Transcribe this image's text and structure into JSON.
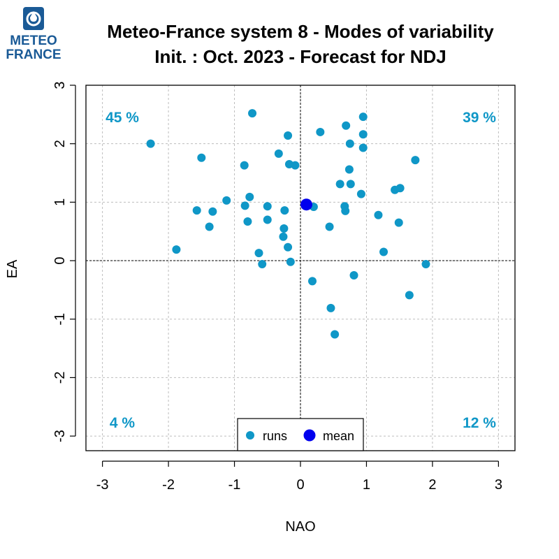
{
  "logo": {
    "line1": "METEO",
    "line2": "FRANCE",
    "color": "#1a5a96"
  },
  "chart_data": {
    "type": "scatter",
    "title": "Meteo-France system 8 - Modes of variability",
    "subtitle": "Init. : Oct. 2023 - Forecast for NDJ",
    "xlabel": "NAO",
    "ylabel": "EA",
    "xlim": [
      -3.25,
      3.25
    ],
    "ylim": [
      -3.25,
      3.0
    ],
    "xticks": [
      -3,
      -2,
      -1,
      0,
      1,
      2,
      3
    ],
    "yticks": [
      -3,
      -2,
      -1,
      0,
      1,
      2,
      3
    ],
    "xtick_labels": [
      "-3",
      "-2",
      "-1",
      "0",
      "1",
      "2",
      "3"
    ],
    "ytick_labels": [
      "-3",
      "-2",
      "-1",
      "0",
      "1",
      "2",
      "3"
    ],
    "grid": true,
    "quadrant_labels": [
      {
        "position": "top-left",
        "text": "45 %"
      },
      {
        "position": "top-right",
        "text": "39 %"
      },
      {
        "position": "bottom-left",
        "text": "4 %"
      },
      {
        "position": "bottom-right",
        "text": "12 %"
      }
    ],
    "legend": {
      "placement": "bottom-center",
      "entries": [
        {
          "label": "runs",
          "color": "#0f97c7"
        },
        {
          "label": "mean",
          "color": "#0000ee"
        }
      ]
    },
    "series": [
      {
        "name": "runs",
        "color": "#0f97c7",
        "points": [
          [
            -2.27,
            2.0
          ],
          [
            -1.5,
            1.76
          ],
          [
            -0.73,
            2.52
          ],
          [
            -0.85,
            1.63
          ],
          [
            -0.33,
            1.83
          ],
          [
            -0.19,
            2.14
          ],
          [
            -0.17,
            1.65
          ],
          [
            -0.08,
            1.63
          ],
          [
            0.3,
            2.2
          ],
          [
            0.69,
            2.31
          ],
          [
            0.95,
            2.46
          ],
          [
            0.95,
            2.16
          ],
          [
            0.75,
            2.0
          ],
          [
            0.95,
            1.93
          ],
          [
            1.74,
            1.72
          ],
          [
            0.74,
            1.56
          ],
          [
            0.6,
            1.31
          ],
          [
            0.76,
            1.31
          ],
          [
            0.92,
            1.14
          ],
          [
            1.43,
            1.21
          ],
          [
            1.51,
            1.24
          ],
          [
            -1.12,
            1.03
          ],
          [
            -0.77,
            1.09
          ],
          [
            -1.57,
            0.86
          ],
          [
            -1.33,
            0.84
          ],
          [
            -0.84,
            0.94
          ],
          [
            -0.5,
            0.93
          ],
          [
            -0.24,
            0.86
          ],
          [
            0.2,
            0.92
          ],
          [
            0.67,
            0.93
          ],
          [
            0.68,
            0.85
          ],
          [
            1.18,
            0.78
          ],
          [
            -1.38,
            0.58
          ],
          [
            -0.8,
            0.67
          ],
          [
            -0.5,
            0.7
          ],
          [
            -0.25,
            0.55
          ],
          [
            0.44,
            0.58
          ],
          [
            1.49,
            0.65
          ],
          [
            -0.26,
            0.41
          ],
          [
            -0.19,
            0.23
          ],
          [
            -0.63,
            0.13
          ],
          [
            -0.58,
            -0.06
          ],
          [
            -0.15,
            -0.02
          ],
          [
            1.26,
            0.15
          ],
          [
            -1.88,
            0.19
          ],
          [
            1.9,
            -0.06
          ],
          [
            0.18,
            -0.35
          ],
          [
            0.81,
            -0.25
          ],
          [
            0.46,
            -0.81
          ],
          [
            1.65,
            -0.59
          ],
          [
            0.52,
            -1.26
          ]
        ]
      },
      {
        "name": "mean",
        "color": "#0000ee",
        "points": [
          [
            0.09,
            0.96
          ]
        ]
      }
    ]
  }
}
